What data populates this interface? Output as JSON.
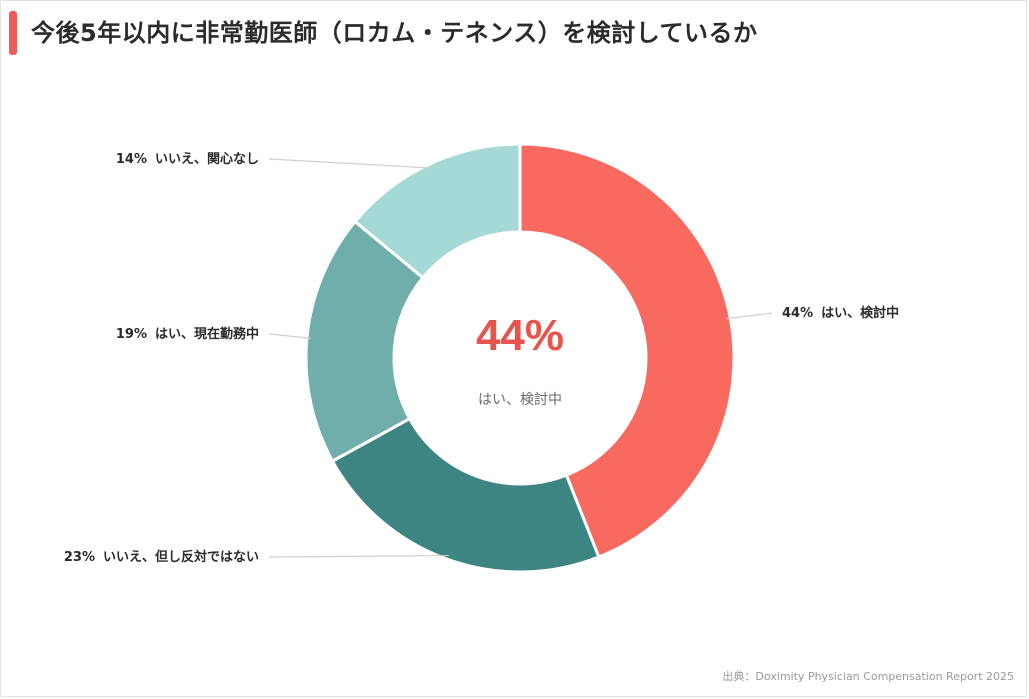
{
  "title": "今後5年以内に非常勤医師（ロカム・テネンス）を検討しているか",
  "source": "出典：Doximity Physician Compensation Report 2025",
  "center": {
    "value": "44%",
    "label": "はい、検討中"
  },
  "chart_data": {
    "type": "pie",
    "donut": true,
    "slices": [
      {
        "label": "はい、検討中",
        "value": 44,
        "display": "44%",
        "color": "#f86a60"
      },
      {
        "label": "いいえ、但し反対ではない",
        "value": 23,
        "display": "23%",
        "color": "#3c8582"
      },
      {
        "label": "はい、現在勤務中",
        "value": 19,
        "display": "19%",
        "color": "#6faeaa"
      },
      {
        "label": "いいえ、関心なし",
        "value": 14,
        "display": "14%",
        "color": "#a4d9d5"
      }
    ]
  }
}
